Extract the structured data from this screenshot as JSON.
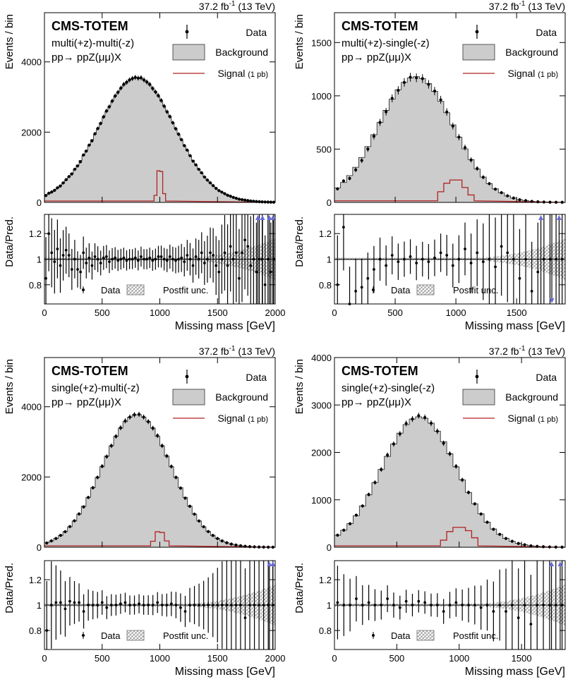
{
  "figure": {
    "lumi_label": "37.2 fb",
    "lumi_sup": "-1",
    "energy_label": " (13 TeV)",
    "experiment": "CMS-TOTEM",
    "process": "pp→ ppZ(μμ)X",
    "upper_ylabel": "Events / bin",
    "ratio_ylabel": "Data/Pred.",
    "xlabel": "Missing mass [GeV]",
    "legend_data": "Data",
    "legend_background": "Background",
    "legend_signal": "Signal",
    "legend_signal_xsec": "(1 pb)",
    "legend_ratio_data": "Data",
    "legend_ratio_unc": "Postfit unc.",
    "colors": {
      "background_fill": "#cccccc",
      "signal_line": "#b22222",
      "uncertainty_hatch": "#888888",
      "overflow_arrow": "#6b6bd8"
    }
  },
  "chart_data": [
    {
      "type": "bar",
      "panel": "top-left",
      "category": "multi(+z)-multi(-z)",
      "xlim": [
        0,
        2000
      ],
      "ylim_upper": [
        0,
        5400
      ],
      "yticks_upper": [
        0,
        2000,
        4000
      ],
      "ylim_ratio": [
        0.65,
        1.35
      ],
      "yticks_ratio": [
        0.8,
        1,
        1.2
      ],
      "xticks": [
        0,
        500,
        1000,
        1500,
        2000
      ],
      "bins": {
        "start": 0,
        "width": 25,
        "count": 80
      },
      "shape": {
        "type": "gauss",
        "peak": 3550,
        "mu": 800,
        "sigma": 330
      },
      "signal": {
        "values": [
          [
            950,
            200
          ],
          [
            975,
            900
          ],
          [
            1000,
            880
          ],
          [
            1025,
            250
          ]
        ],
        "baseline": 40
      },
      "ratio_deviations": [
        -0.15,
        0.2,
        0.05,
        -0.02,
        0.08,
        -0.05,
        0.03,
        0.07,
        0.03,
        -0.08,
        0.0,
        -0.08,
        -0.1,
        0.05,
        -0.03,
        0.01,
        -0.05,
        0.02,
        0.0,
        -0.03,
        0.01,
        0.02,
        -0.02,
        0.0,
        0.01,
        -0.01,
        0.0,
        0.01,
        -0.01,
        0.0,
        0.0,
        0.01,
        -0.01,
        0.02,
        0.0,
        0.0,
        0.01,
        -0.01,
        0.0,
        0.02,
        0.02,
        0.0,
        -0.01,
        0.02,
        0.0,
        -0.01,
        0.0,
        0.01,
        -0.02,
        0.03,
        0.0,
        -0.05,
        0.02,
        0.0,
        0.05,
        -0.03,
        0.0,
        0.05,
        0.03,
        -0.05,
        -0.1,
        0.0,
        0.05,
        -0.05,
        0.1,
        0.0,
        0.05,
        -0.15,
        0.05,
        0.15,
        0.1,
        -0.05,
        0.0,
        -0.1,
        0.0,
        0.0,
        -0.2,
        0.0,
        -0.1,
        0.0
      ],
      "up_arrows_x": [
        1850,
        1890,
        1950,
        1980
      ]
    },
    {
      "type": "bar",
      "panel": "top-right",
      "category": "multi(+z)-single(-z)",
      "xlim": [
        0,
        1900
      ],
      "ylim_upper": [
        0,
        1780
      ],
      "yticks_upper": [
        0,
        500,
        1000,
        1500
      ],
      "ylim_ratio": [
        0.65,
        1.35
      ],
      "yticks_ratio": [
        0.8,
        1,
        1.2
      ],
      "xticks": [
        0,
        500,
        1000,
        1500
      ],
      "bins": {
        "start": 0,
        "width": 50,
        "count": 38
      },
      "shape": {
        "type": "gauss",
        "peak": 1180,
        "mu": 670,
        "sigma": 310
      },
      "signal": {
        "values": [
          [
            850,
            100
          ],
          [
            900,
            180
          ],
          [
            950,
            210
          ],
          [
            1000,
            210
          ],
          [
            1050,
            140
          ],
          [
            1100,
            70
          ]
        ],
        "baseline": 15
      },
      "ratio_deviations": [
        -0.2,
        0.25,
        -0.35,
        -0.25,
        -0.22,
        -0.15,
        -0.08,
        0.0,
        -0.05,
        0.03,
        -0.02,
        0.0,
        0.02,
        -0.03,
        0.0,
        -0.02,
        0.01,
        0.05,
        0.03,
        -0.05,
        0.0,
        0.08,
        -0.03,
        0.05,
        -0.02,
        0.0,
        -0.06,
        0.1,
        0.05,
        0.0,
        -0.15,
        0.0,
        -0.25,
        -0.1,
        0.0,
        0.0,
        0.0,
        0.0
      ],
      "up_arrows_x": [
        1700,
        1850
      ],
      "down_arrows_x": [
        1790
      ]
    },
    {
      "type": "bar",
      "panel": "bottom-left",
      "category": "single(+z)-multi(-z)",
      "xlim": [
        0,
        2000
      ],
      "ylim_upper": [
        0,
        5400
      ],
      "yticks_upper": [
        0,
        2000,
        4000
      ],
      "ylim_ratio": [
        0.65,
        1.35
      ],
      "yticks_ratio": [
        0.8,
        1,
        1.2
      ],
      "xticks": [
        0,
        500,
        1000,
        1500,
        2000
      ],
      "bins": {
        "start": 0,
        "width": 40,
        "count": 50
      },
      "shape": {
        "type": "gauss",
        "peak": 3780,
        "mu": 800,
        "sigma": 300
      },
      "signal": {
        "values": [
          [
            920,
            170
          ],
          [
            960,
            440
          ],
          [
            1000,
            420
          ],
          [
            1040,
            180
          ]
        ],
        "baseline": 40
      },
      "ratio_deviations": [
        -0.2,
        0.0,
        0.02,
        0.02,
        -0.03,
        0.03,
        0.02,
        0.02,
        -0.05,
        0.0,
        0.0,
        0.0,
        0.02,
        -0.02,
        0.0,
        0.0,
        0.01,
        0.02,
        0.0,
        0.0,
        0.01,
        0.0,
        0.0,
        0.0,
        0.02,
        0.0,
        0.0,
        0.01,
        0.0,
        -0.02,
        -0.05,
        0.0,
        0.0,
        0.0,
        0.0,
        0.0,
        0.0,
        0.0,
        0.0,
        0.0,
        0.0,
        0.0,
        0.0,
        -0.1,
        0.0,
        0.0,
        0.0,
        0.0,
        0.0,
        0.0
      ],
      "up_arrows_x": [
        1950,
        1980
      ]
    },
    {
      "type": "bar",
      "panel": "bottom-right",
      "category": "single(+z)-single(-z)",
      "xlim": [
        0,
        1850
      ],
      "ylim_upper": [
        0,
        4000
      ],
      "yticks_upper": [
        0,
        1000,
        2000,
        3000,
        4000
      ],
      "ylim_ratio": [
        0.65,
        1.35
      ],
      "yticks_ratio": [
        0.8,
        1,
        1.2
      ],
      "xticks": [
        0,
        500,
        1000,
        1500
      ],
      "bins": {
        "start": 0,
        "width": 50,
        "count": 37
      },
      "shape": {
        "type": "gauss",
        "peak": 2750,
        "mu": 680,
        "sigma": 300
      },
      "signal": {
        "values": [
          [
            850,
            150
          ],
          [
            900,
            330
          ],
          [
            950,
            420
          ],
          [
            1000,
            420
          ],
          [
            1050,
            350
          ],
          [
            1100,
            200
          ]
        ],
        "baseline": 30
      },
      "ratio_deviations": [
        0.02,
        0.0,
        0.0,
        0.05,
        0.0,
        0.02,
        0.0,
        0.0,
        0.05,
        0.0,
        -0.02,
        0.03,
        0.0,
        0.03,
        0.02,
        0.0,
        0.0,
        -0.05,
        0.0,
        0.02,
        0.0,
        0.0,
        0.0,
        -0.02,
        0.0,
        -0.05,
        0.0,
        -0.05,
        0.0,
        -0.1,
        0.0,
        -0.15,
        0.0,
        0.0,
        0.0,
        0.0,
        0.0
      ],
      "up_arrows_x": [
        1740,
        1810
      ]
    }
  ]
}
